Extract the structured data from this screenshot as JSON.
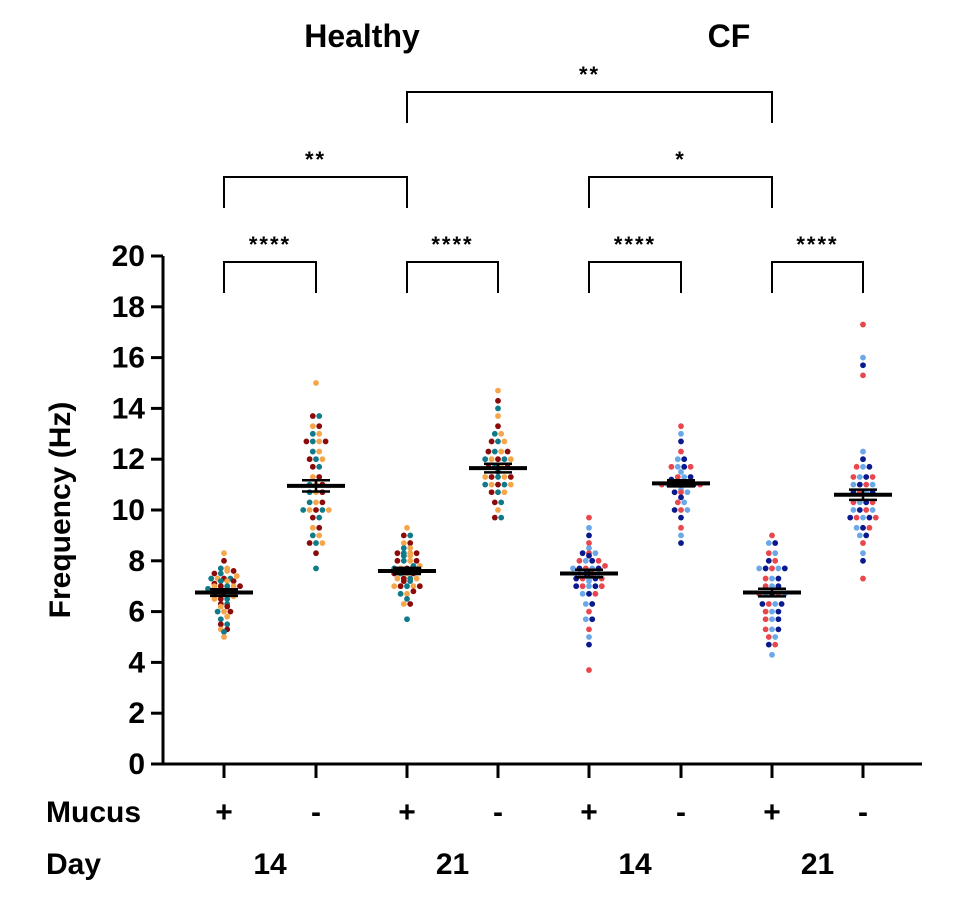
{
  "chart_data": {
    "type": "scatter",
    "ylabel": "Frequency (Hz)",
    "ylim": [
      0,
      20
    ],
    "yticks": [
      "0",
      "2",
      "4",
      "6",
      "8",
      "10",
      "12",
      "14",
      "16",
      "18",
      "20"
    ],
    "group_titles": [
      {
        "label": "Healthy",
        "span": [
          0,
          3
        ]
      },
      {
        "label": "CF",
        "span": [
          4,
          7
        ]
      }
    ],
    "row_labels": {
      "mucus": "Mucus",
      "day": "Day"
    },
    "categories": [
      {
        "mucus": "+",
        "day": "14"
      },
      {
        "mucus": "-",
        "day": ""
      },
      {
        "mucus": "+",
        "day": "21"
      },
      {
        "mucus": "-",
        "day": ""
      },
      {
        "mucus": "+",
        "day": "14"
      },
      {
        "mucus": "-",
        "day": ""
      },
      {
        "mucus": "+",
        "day": "21"
      },
      {
        "mucus": "-",
        "day": ""
      }
    ],
    "colors": {
      "healthy": [
        "#f5a54a",
        "#8b0a0a",
        "#0f7a8a"
      ],
      "cf": [
        "#e8474d",
        "#6aa8e8",
        "#0a1a8c"
      ]
    },
    "series": [
      {
        "name": "Healthy Day14 Mucus+",
        "palette": "healthy",
        "mean": 6.75,
        "sem": 0.13,
        "values": [
          5.0,
          5.2,
          5.3,
          5.3,
          5.5,
          5.5,
          5.7,
          5.8,
          6.0,
          6.0,
          6.0,
          6.2,
          6.2,
          6.3,
          6.3,
          6.5,
          6.5,
          6.5,
          6.6,
          6.7,
          6.7,
          6.8,
          6.8,
          6.9,
          7.0,
          7.0,
          7.0,
          7.0,
          7.0,
          7.1,
          7.2,
          7.2,
          7.2,
          7.3,
          7.3,
          7.3,
          7.3,
          7.4,
          7.5,
          7.5,
          7.6,
          7.6,
          7.7,
          7.7,
          8.0,
          8.3
        ]
      },
      {
        "name": "Healthy Day14 Mucus-",
        "palette": "healthy",
        "mean": 10.95,
        "sem": 0.22,
        "values": [
          7.7,
          8.3,
          8.7,
          8.7,
          8.7,
          9.0,
          9.0,
          9.3,
          9.3,
          9.7,
          9.7,
          10.0,
          10.0,
          10.0,
          10.0,
          10.0,
          10.3,
          10.3,
          10.3,
          10.7,
          10.7,
          10.7,
          11.0,
          11.0,
          11.0,
          11.3,
          11.3,
          11.7,
          11.7,
          12.0,
          12.0,
          12.0,
          12.3,
          12.3,
          12.7,
          12.7,
          12.7,
          12.7,
          13.0,
          13.0,
          13.3,
          13.3,
          13.7,
          13.7,
          15.0
        ]
      },
      {
        "name": "Healthy Day21 Mucus+",
        "palette": "healthy",
        "mean": 7.6,
        "sem": 0.12,
        "values": [
          5.7,
          6.3,
          6.3,
          6.5,
          6.7,
          6.7,
          6.8,
          7.0,
          7.0,
          7.0,
          7.0,
          7.0,
          7.2,
          7.2,
          7.3,
          7.3,
          7.3,
          7.3,
          7.5,
          7.5,
          7.5,
          7.5,
          7.6,
          7.7,
          7.7,
          7.7,
          7.8,
          7.8,
          8.0,
          8.0,
          8.0,
          8.0,
          8.2,
          8.2,
          8.3,
          8.3,
          8.3,
          8.3,
          8.5,
          8.5,
          8.7,
          8.7,
          9.0,
          9.0,
          9.3
        ]
      },
      {
        "name": "Healthy Day21 Mucus-",
        "palette": "healthy",
        "mean": 11.65,
        "sem": 0.17,
        "values": [
          9.7,
          9.7,
          10.0,
          10.3,
          10.3,
          10.7,
          10.7,
          10.7,
          11.0,
          11.0,
          11.0,
          11.0,
          11.0,
          11.3,
          11.3,
          11.3,
          11.3,
          11.3,
          11.5,
          11.7,
          11.7,
          11.7,
          11.7,
          12.0,
          12.0,
          12.0,
          12.0,
          12.0,
          12.3,
          12.3,
          12.3,
          12.3,
          12.7,
          12.7,
          12.7,
          13.0,
          13.0,
          13.3,
          13.7,
          14.0,
          14.3,
          14.7
        ]
      },
      {
        "name": "CF Day14 Mucus+",
        "palette": "cf",
        "mean": 7.5,
        "sem": 0.15,
        "values": [
          3.7,
          4.7,
          5.0,
          5.3,
          5.7,
          5.7,
          6.0,
          6.3,
          6.3,
          6.7,
          6.7,
          6.7,
          7.0,
          7.0,
          7.0,
          7.0,
          7.0,
          7.2,
          7.3,
          7.3,
          7.3,
          7.3,
          7.3,
          7.5,
          7.5,
          7.5,
          7.5,
          7.7,
          7.7,
          7.7,
          7.7,
          7.7,
          7.8,
          8.0,
          8.0,
          8.0,
          8.0,
          8.2,
          8.3,
          8.3,
          8.3,
          8.5,
          8.7,
          9.0,
          9.3,
          9.7
        ]
      },
      {
        "name": "CF Day14 Mucus-",
        "palette": "cf",
        "mean": 11.05,
        "sem": 0.12,
        "values": [
          8.7,
          9.0,
          9.3,
          9.7,
          10.0,
          10.0,
          10.0,
          10.3,
          10.3,
          10.5,
          10.7,
          10.7,
          10.7,
          10.8,
          11.0,
          11.0,
          11.0,
          11.0,
          11.0,
          11.0,
          11.0,
          11.2,
          11.3,
          11.3,
          11.3,
          11.5,
          11.7,
          11.7,
          11.7,
          11.7,
          12.0,
          12.0,
          12.3,
          12.7,
          13.0,
          13.3
        ]
      },
      {
        "name": "CF Day21 Mucus+",
        "palette": "cf",
        "mean": 6.75,
        "sem": 0.15,
        "values": [
          4.3,
          4.7,
          4.7,
          5.0,
          5.0,
          5.3,
          5.3,
          5.3,
          5.7,
          5.7,
          5.7,
          6.0,
          6.0,
          6.0,
          6.3,
          6.3,
          6.3,
          6.3,
          6.7,
          6.7,
          6.7,
          6.7,
          6.7,
          7.0,
          7.0,
          7.0,
          7.3,
          7.3,
          7.3,
          7.7,
          7.7,
          7.7,
          7.7,
          7.7,
          8.0,
          8.0,
          8.3,
          8.3,
          8.7,
          8.7,
          9.0
        ]
      },
      {
        "name": "CF Day21 Mucus-",
        "palette": "cf",
        "mean": 10.6,
        "sem": 0.2,
        "values": [
          7.3,
          8.0,
          8.3,
          8.7,
          9.0,
          9.0,
          9.3,
          9.3,
          9.3,
          9.7,
          9.7,
          9.7,
          9.7,
          9.7,
          10.0,
          10.0,
          10.0,
          10.0,
          10.3,
          10.3,
          10.3,
          10.3,
          10.7,
          10.7,
          10.7,
          10.7,
          11.0,
          11.0,
          11.0,
          11.0,
          11.3,
          11.3,
          11.3,
          11.3,
          11.7,
          11.7,
          11.7,
          12.0,
          12.3,
          15.3,
          15.7,
          16.0,
          17.3
        ]
      }
    ],
    "significance": [
      {
        "from": 0,
        "to": 1,
        "label": "****",
        "level": 0
      },
      {
        "from": 2,
        "to": 3,
        "label": "****",
        "level": 0
      },
      {
        "from": 4,
        "to": 5,
        "label": "****",
        "level": 0
      },
      {
        "from": 6,
        "to": 7,
        "label": "****",
        "level": 0
      },
      {
        "from": 0,
        "to": 2,
        "label": "**",
        "level": 1
      },
      {
        "from": 4,
        "to": 6,
        "label": "*",
        "level": 1
      },
      {
        "from": 2,
        "to": 6,
        "label": "**",
        "level": 2
      }
    ]
  }
}
